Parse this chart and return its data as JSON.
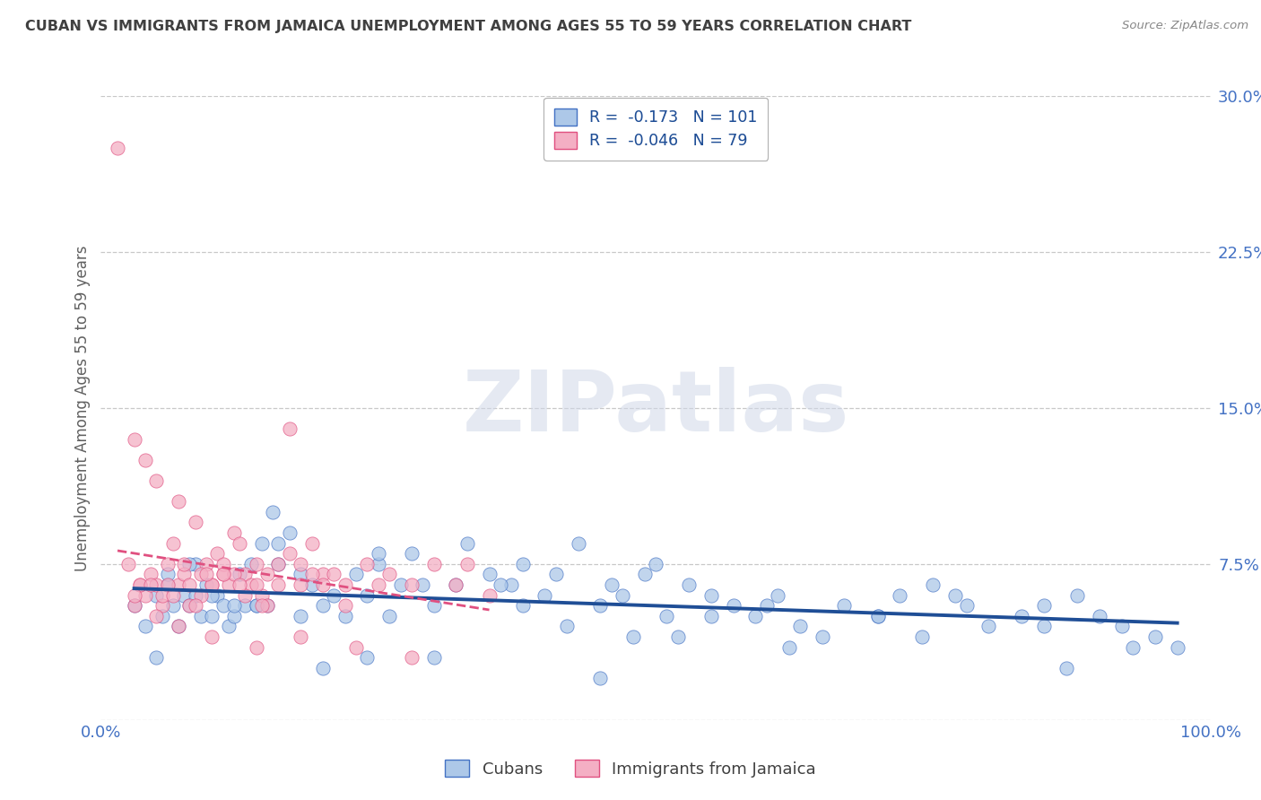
{
  "title": "CUBAN VS IMMIGRANTS FROM JAMAICA UNEMPLOYMENT AMONG AGES 55 TO 59 YEARS CORRELATION CHART",
  "source": "Source: ZipAtlas.com",
  "ylabel": "Unemployment Among Ages 55 to 59 years",
  "xlim": [
    0,
    100
  ],
  "ylim": [
    0,
    30
  ],
  "yticks": [
    0,
    7.5,
    15.0,
    22.5,
    30.0
  ],
  "yticklabels": [
    "",
    "7.5%",
    "15.0%",
    "22.5%",
    "30.0%"
  ],
  "xticks": [
    0,
    100
  ],
  "xticklabels": [
    "0.0%",
    "100.0%"
  ],
  "cubans_R": -0.173,
  "cubans_N": 101,
  "jamaica_R": -0.046,
  "jamaica_N": 79,
  "cubans_color": "#adc8e8",
  "jamaica_color": "#f4afc4",
  "cubans_edge_color": "#4472C4",
  "jamaica_edge_color": "#E05080",
  "cubans_line_color": "#1F4E96",
  "jamaica_line_color": "#E05080",
  "watermark_text": "ZIPatlas",
  "legend_cubans": "Cubans",
  "legend_jamaica": "Immigrants from Jamaica",
  "background_color": "#ffffff",
  "grid_color": "#c8c8c8",
  "title_color": "#404040",
  "axis_label_color": "#606060",
  "tick_color": "#4472C4",
  "cubans_x": [
    3.0,
    4.0,
    5.0,
    5.5,
    6.0,
    6.5,
    7.0,
    7.5,
    8.0,
    8.5,
    9.0,
    9.5,
    10.0,
    10.5,
    11.0,
    11.5,
    12.0,
    12.5,
    13.0,
    13.5,
    14.0,
    14.5,
    15.0,
    15.5,
    16.0,
    17.0,
    18.0,
    19.0,
    20.0,
    21.0,
    22.0,
    23.0,
    24.0,
    25.0,
    26.0,
    27.0,
    28.0,
    30.0,
    32.0,
    33.0,
    35.0,
    37.0,
    38.0,
    40.0,
    41.0,
    43.0,
    45.0,
    46.0,
    47.0,
    49.0,
    50.0,
    51.0,
    53.0,
    55.0,
    57.0,
    59.0,
    61.0,
    63.0,
    65.0,
    67.0,
    70.0,
    72.0,
    75.0,
    78.0,
    80.0,
    83.0,
    85.0,
    88.0,
    90.0,
    92.0,
    95.0,
    97.0,
    8.0,
    10.0,
    14.0,
    18.0,
    55.0,
    42.0,
    29.0,
    16.0,
    6.0,
    8.5,
    12.0,
    25.0,
    38.0,
    52.0,
    70.0,
    85.0,
    93.0,
    77.0,
    60.0,
    48.0,
    36.0,
    24.0,
    20.0,
    30.0,
    45.0,
    62.0,
    74.0,
    87.0,
    5.0
  ],
  "cubans_y": [
    5.5,
    4.5,
    6.0,
    5.0,
    6.5,
    5.5,
    4.5,
    6.0,
    5.5,
    7.5,
    5.0,
    6.5,
    5.0,
    6.0,
    5.5,
    4.5,
    5.0,
    7.0,
    5.5,
    7.5,
    5.5,
    8.5,
    5.5,
    10.0,
    7.5,
    9.0,
    7.0,
    6.5,
    5.5,
    6.0,
    5.0,
    7.0,
    6.0,
    7.5,
    5.0,
    6.5,
    8.0,
    5.5,
    6.5,
    8.5,
    7.0,
    6.5,
    5.5,
    6.0,
    7.0,
    8.5,
    5.5,
    6.5,
    6.0,
    7.0,
    7.5,
    5.0,
    6.5,
    6.0,
    5.5,
    5.0,
    6.0,
    4.5,
    4.0,
    5.5,
    5.0,
    6.0,
    6.5,
    5.5,
    4.5,
    5.0,
    5.5,
    6.0,
    5.0,
    4.5,
    4.0,
    3.5,
    7.5,
    6.0,
    5.5,
    5.0,
    5.0,
    4.5,
    6.5,
    8.5,
    7.0,
    6.0,
    5.5,
    8.0,
    7.5,
    4.0,
    5.0,
    4.5,
    3.5,
    6.0,
    5.5,
    4.0,
    6.5,
    3.0,
    2.5,
    3.0,
    2.0,
    3.5,
    4.0,
    2.5,
    3.0
  ],
  "jamaica_x": [
    1.5,
    2.5,
    3.0,
    3.5,
    4.0,
    4.5,
    5.0,
    5.5,
    6.0,
    6.5,
    7.0,
    7.5,
    8.0,
    8.5,
    9.0,
    9.5,
    10.0,
    10.5,
    11.0,
    11.5,
    12.0,
    12.5,
    13.0,
    13.5,
    14.0,
    14.5,
    15.0,
    16.0,
    17.0,
    18.0,
    19.0,
    20.0,
    22.0,
    24.0,
    26.0,
    28.0,
    30.0,
    32.0,
    35.0,
    3.0,
    4.0,
    5.0,
    6.0,
    7.0,
    8.0,
    9.0,
    10.0,
    11.0,
    12.0,
    13.0,
    14.0,
    15.0,
    16.0,
    17.0,
    18.0,
    19.0,
    20.0,
    22.0,
    3.5,
    5.5,
    7.5,
    9.5,
    12.5,
    14.5,
    6.5,
    8.5,
    11.0,
    4.5,
    21.0,
    25.0,
    33.0,
    3.0,
    5.0,
    7.0,
    10.0,
    14.0,
    18.0,
    23.0,
    28.0
  ],
  "jamaica_y": [
    27.5,
    7.5,
    5.5,
    6.5,
    6.0,
    7.0,
    6.5,
    5.5,
    7.5,
    8.5,
    6.5,
    7.0,
    6.5,
    9.5,
    6.0,
    7.5,
    6.5,
    8.0,
    7.0,
    6.5,
    9.0,
    8.5,
    7.0,
    6.5,
    7.5,
    6.0,
    7.0,
    6.5,
    14.0,
    7.5,
    8.5,
    7.0,
    6.5,
    7.5,
    7.0,
    6.5,
    7.5,
    6.5,
    6.0,
    13.5,
    12.5,
    11.5,
    6.5,
    10.5,
    5.5,
    7.0,
    6.5,
    7.5,
    7.0,
    6.0,
    6.5,
    5.5,
    7.5,
    8.0,
    6.5,
    7.0,
    6.5,
    5.5,
    6.5,
    6.0,
    7.5,
    7.0,
    6.5,
    5.5,
    6.0,
    5.5,
    7.0,
    6.5,
    7.0,
    6.5,
    7.5,
    6.0,
    5.0,
    4.5,
    4.0,
    3.5,
    4.0,
    3.5,
    3.0
  ]
}
